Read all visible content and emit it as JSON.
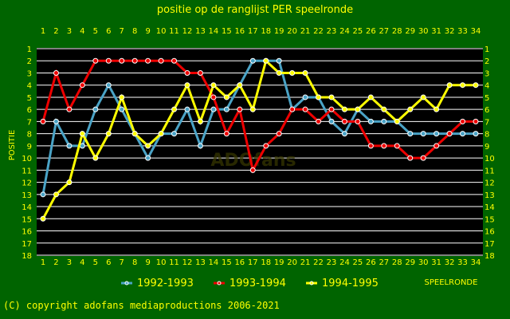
{
  "chart_data": {
    "type": "line",
    "title": "positie op de ranglijst PER speelronde",
    "xlabel": "SPEELRONDE",
    "ylabel": "POSITIE",
    "x": [
      1,
      2,
      3,
      4,
      5,
      6,
      7,
      8,
      9,
      10,
      11,
      12,
      13,
      14,
      15,
      16,
      17,
      18,
      19,
      20,
      21,
      22,
      23,
      24,
      25,
      26,
      27,
      28,
      29,
      30,
      31,
      32,
      33,
      34
    ],
    "xlim": [
      1,
      34
    ],
    "ylim": [
      1,
      18
    ],
    "y_inverted": true,
    "grid": true,
    "legend_position": "bottom",
    "series": [
      {
        "name": "1992-1993",
        "color": "#4aa3c6",
        "values": [
          13,
          7,
          9,
          9,
          6,
          4,
          6,
          8,
          10,
          8,
          8,
          6,
          9,
          6,
          6,
          4,
          2,
          2,
          2,
          6,
          5,
          5,
          7,
          8,
          6,
          7,
          7,
          7,
          8,
          8,
          8,
          8,
          8,
          8
        ]
      },
      {
        "name": "1993-1994",
        "color": "#ee0000",
        "values": [
          7,
          3,
          6,
          4,
          2,
          2,
          2,
          2,
          2,
          2,
          2,
          3,
          3,
          5,
          8,
          6,
          11,
          9,
          8,
          6,
          6,
          7,
          6,
          7,
          7,
          9,
          9,
          9,
          10,
          10,
          9,
          8,
          7,
          7
        ]
      },
      {
        "name": "1994-1995",
        "color": "#ffff00",
        "values": [
          15,
          13,
          12,
          8,
          10,
          8,
          5,
          8,
          9,
          8,
          6,
          4,
          7,
          4,
          5,
          4,
          6,
          2,
          3,
          3,
          3,
          5,
          5,
          6,
          6,
          5,
          6,
          7,
          6,
          5,
          6,
          4,
          4,
          4
        ]
      }
    ]
  },
  "watermark": "ADOfans",
  "footer": {
    "copyright": "(C) copyright adofans mediaproductions 2006-2021"
  }
}
